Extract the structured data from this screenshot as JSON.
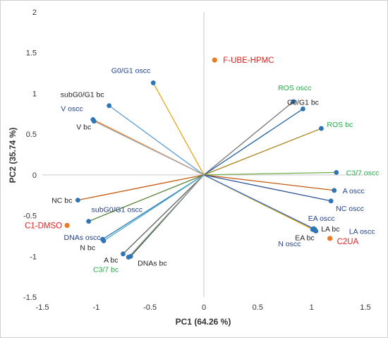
{
  "chart_data": {
    "type": "scatter",
    "title": "",
    "xlabel": "PC1 (64.26 %)",
    "ylabel": "PC2 (35.74 %)",
    "xlim": [
      -1.5,
      1.5
    ],
    "ylim": [
      -1.5,
      2
    ],
    "x_ticks": [
      "-1.5",
      "-1",
      "-0.5",
      "0",
      "0.5",
      "1",
      "1.5"
    ],
    "y_ticks": [
      "-1.5",
      "-1",
      "-0.5",
      "0",
      "0.5",
      "1",
      "1.5",
      "2"
    ],
    "grid": false,
    "reference_lines": "x=0 and y=0",
    "colors": {
      "text_blue": "#1f3f8a",
      "text_black": "#222222",
      "text_green": "#22aa44",
      "text_red": "#e02020",
      "sample_marker": "#f07820",
      "variable_marker": "#2e75b6"
    },
    "variables": [
      {
        "name": "G0/G1 oscc",
        "x": -0.47,
        "y": 1.13,
        "line_color": "#e0a81a",
        "label_color": "#1f3f8a"
      },
      {
        "name": "subG0/G1 bc",
        "x": -0.88,
        "y": 0.85,
        "line_color": "#5b9bd5",
        "label_color": "#222222"
      },
      {
        "name": "V oscc",
        "x": -1.03,
        "y": 0.68,
        "line_color": "#ed7d31",
        "label_color": "#1f3f8a"
      },
      {
        "name": "V bc",
        "x": -1.02,
        "y": 0.66,
        "line_color": "#a5a5a5",
        "label_color": "#222222"
      },
      {
        "name": "ROS oscc",
        "x": 0.83,
        "y": 0.9,
        "line_color": "#777777",
        "label_color": "#22aa44"
      },
      {
        "name": "G0/G1 bc",
        "x": 0.92,
        "y": 0.81,
        "line_color": "#1f5fa0",
        "label_color": "#222222"
      },
      {
        "name": "ROS bc",
        "x": 1.09,
        "y": 0.57,
        "line_color": "#a8821a",
        "label_color": "#22aa44"
      },
      {
        "name": "C3/7 oscc",
        "x": 1.23,
        "y": 0.03,
        "line_color": "#70ad47",
        "label_color": "#22aa44"
      },
      {
        "name": "A oscc",
        "x": 1.21,
        "y": -0.19,
        "line_color": "#c55a11",
        "label_color": "#1f3f8a"
      },
      {
        "name": "NC oscc",
        "x": 1.18,
        "y": -0.32,
        "line_color": "#2f5597",
        "label_color": "#1f3f8a"
      },
      {
        "name": "EA oscc",
        "x": 1.02,
        "y": -0.66,
        "line_color": "#264478",
        "label_color": "#1f3f8a"
      },
      {
        "name": "EA bc",
        "x": 1.03,
        "y": -0.68,
        "line_color": "#5b9bd5",
        "label_color": "#222222"
      },
      {
        "name": "LA bc",
        "x": 1.01,
        "y": -0.67,
        "line_color": "#a9d18e",
        "label_color": "#222222"
      },
      {
        "name": "LA oscc",
        "x": 1.04,
        "y": -0.69,
        "line_color": "#ffc000",
        "label_color": "#1f3f8a"
      },
      {
        "name": "N oscc",
        "x": 1.03,
        "y": -0.67,
        "line_color": "#4472c4",
        "label_color": "#1f3f8a"
      },
      {
        "name": "NC bc",
        "x": -1.17,
        "y": -0.31,
        "line_color": "#c55a11",
        "label_color": "#222222"
      },
      {
        "name": "subG0/G1 oscc",
        "x": -1.07,
        "y": -0.57,
        "line_color": "#548235",
        "label_color": "#1f3f8a"
      },
      {
        "name": "DNAs oscc",
        "x": -0.94,
        "y": -0.79,
        "line_color": "#2e75b6",
        "label_color": "#1f3f8a"
      },
      {
        "name": "N bc",
        "x": -0.93,
        "y": -0.81,
        "line_color": "#4bacc6",
        "label_color": "#222222"
      },
      {
        "name": "A bc",
        "x": -0.75,
        "y": -0.97,
        "line_color": "#595959",
        "label_color": "#222222"
      },
      {
        "name": "DNAs bc",
        "x": -0.68,
        "y": -1.0,
        "line_color": "#1e4d2b",
        "label_color": "#222222"
      },
      {
        "name": "C3/7 bc",
        "x": -0.7,
        "y": -1.01,
        "line_color": "#a5a5a5",
        "label_color": "#22aa44"
      }
    ],
    "samples": [
      {
        "name": "F-UBE-HPMC",
        "x": 0.1,
        "y": 1.41
      },
      {
        "name": "C1-DMSO",
        "x": -1.27,
        "y": -0.62
      },
      {
        "name": "C2UA",
        "x": 1.17,
        "y": -0.78
      }
    ]
  }
}
